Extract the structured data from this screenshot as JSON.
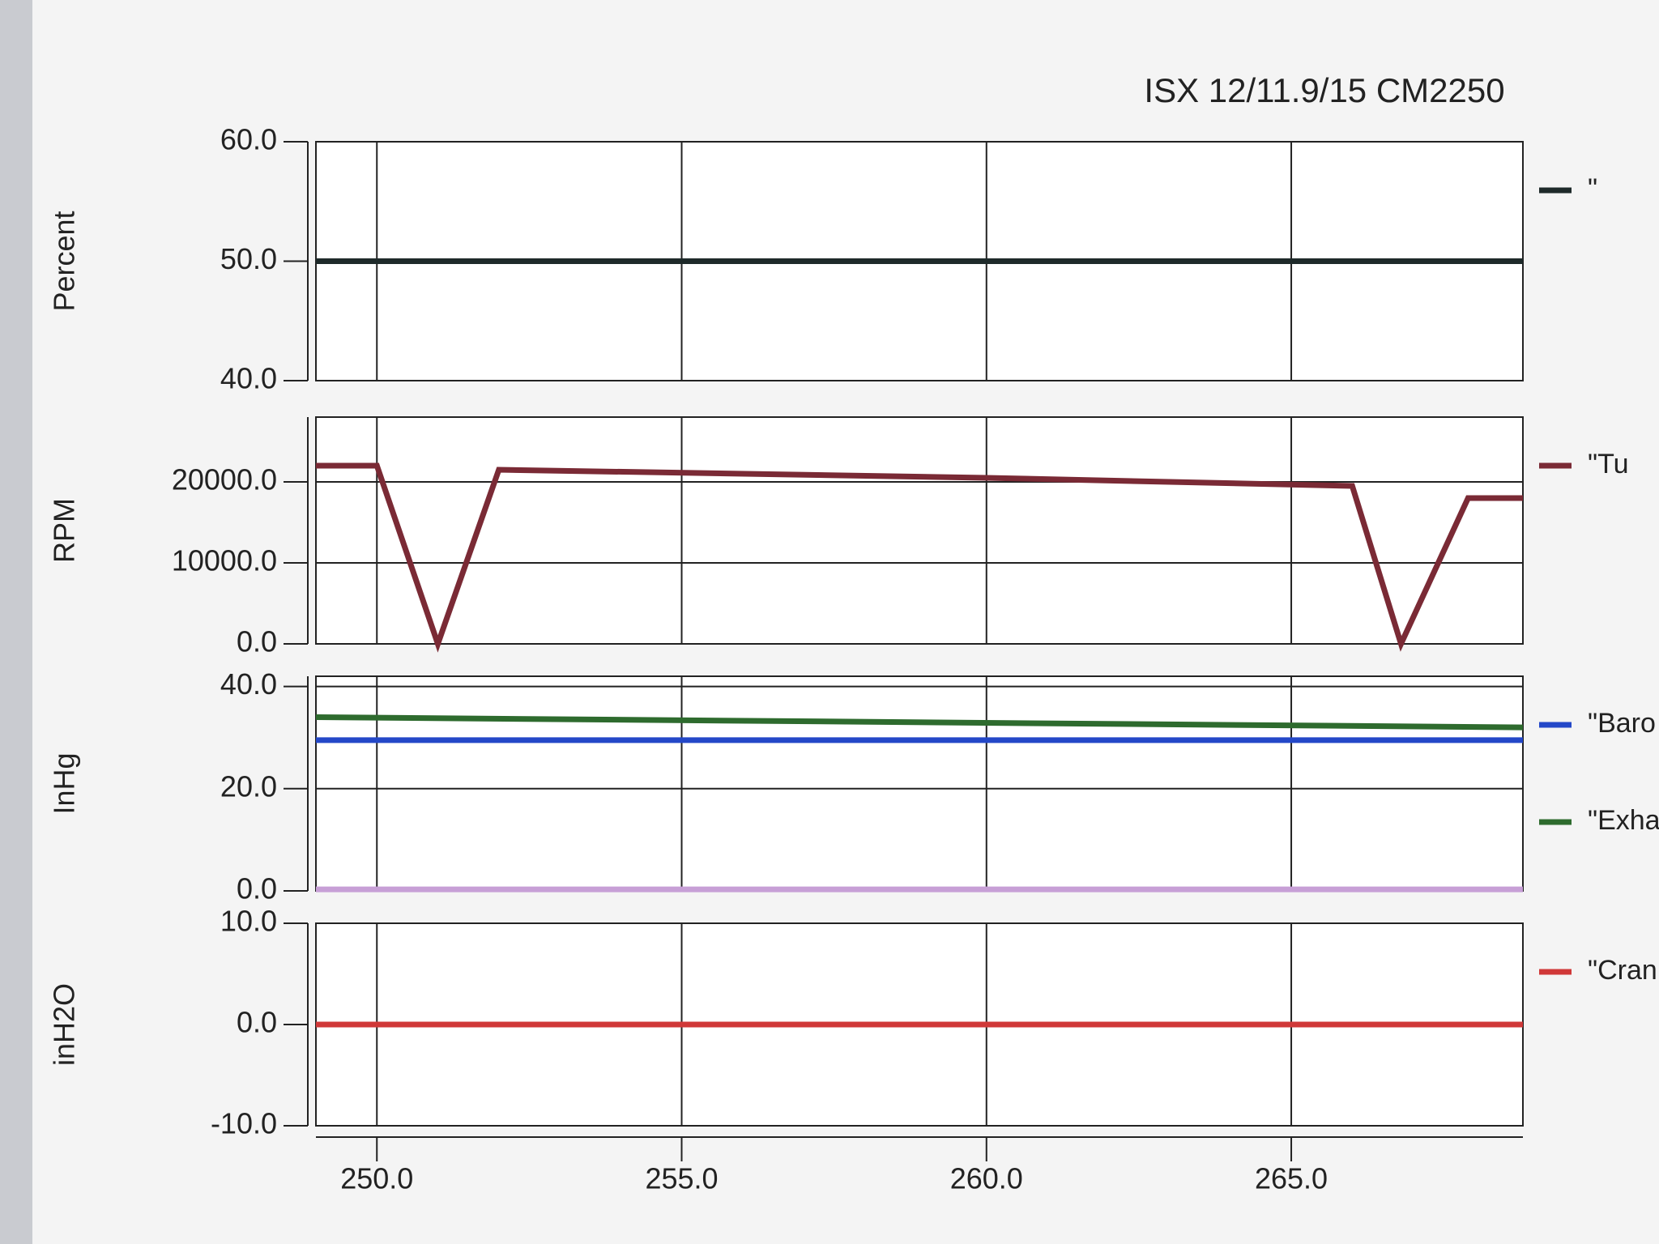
{
  "chart_data": [
    {
      "type": "line",
      "title": "ISX 12/11.9/15 CM2250",
      "y_label": "Percent",
      "xlim": [
        249,
        268.8
      ],
      "ylim": [
        40,
        60
      ],
      "yticks": [
        {
          "value": 40,
          "label": "40.0"
        },
        {
          "value": 50,
          "label": "50.0"
        },
        {
          "value": 60,
          "label": "60.0"
        }
      ],
      "x": [
        249,
        268.8
      ],
      "series": [
        {
          "name": "\"",
          "color": "#1e2a2a",
          "values": [
            50,
            50
          ]
        }
      ]
    },
    {
      "type": "line",
      "y_label": "RPM",
      "xlim": [
        249,
        268.8
      ],
      "ylim": [
        0,
        28000
      ],
      "yticks": [
        {
          "value": 0,
          "label": "0.0"
        },
        {
          "value": 10000,
          "label": "10000.0"
        },
        {
          "value": 20000,
          "label": "20000.0"
        }
      ],
      "x": [
        249,
        250,
        251,
        252,
        260,
        266,
        266.8,
        267.9,
        268.8
      ],
      "series": [
        {
          "name": "\"Tu",
          "color": "#7a2a35",
          "values": [
            22000,
            22000,
            0,
            21500,
            20500,
            19500,
            0,
            18000,
            18000
          ]
        }
      ]
    },
    {
      "type": "line",
      "y_label": "InHg",
      "xlim": [
        249,
        268.8
      ],
      "ylim": [
        0,
        42
      ],
      "yticks": [
        {
          "value": 0,
          "label": "0.0"
        },
        {
          "value": 20,
          "label": "20.0"
        },
        {
          "value": 40,
          "label": "40.0"
        }
      ],
      "x": [
        249,
        268.8
      ],
      "series": [
        {
          "name": "\"Baro",
          "color": "#2448c8",
          "values": [
            29.5,
            29.5
          ]
        },
        {
          "name": "\"Exha",
          "color": "#2e6b2e",
          "values": [
            34,
            32
          ]
        },
        {
          "color": "#c79fd6",
          "values": [
            0.3,
            0.3
          ]
        }
      ]
    },
    {
      "type": "line",
      "y_label": "inH2O",
      "xlim": [
        249,
        268.8
      ],
      "ylim": [
        -10,
        10
      ],
      "yticks": [
        {
          "value": -10,
          "label": "-10.0"
        },
        {
          "value": 0,
          "label": "0.0"
        },
        {
          "value": 10,
          "label": "10.0"
        }
      ],
      "xticks": [
        {
          "value": 250,
          "label": "250.0"
        },
        {
          "value": 255,
          "label": "255.0"
        },
        {
          "value": 260,
          "label": "260.0"
        },
        {
          "value": 265,
          "label": "265.0"
        }
      ],
      "x": [
        249,
        268.8
      ],
      "series": [
        {
          "name": "\"Crank",
          "color": "#d03838",
          "values": [
            0,
            0
          ]
        }
      ]
    }
  ]
}
